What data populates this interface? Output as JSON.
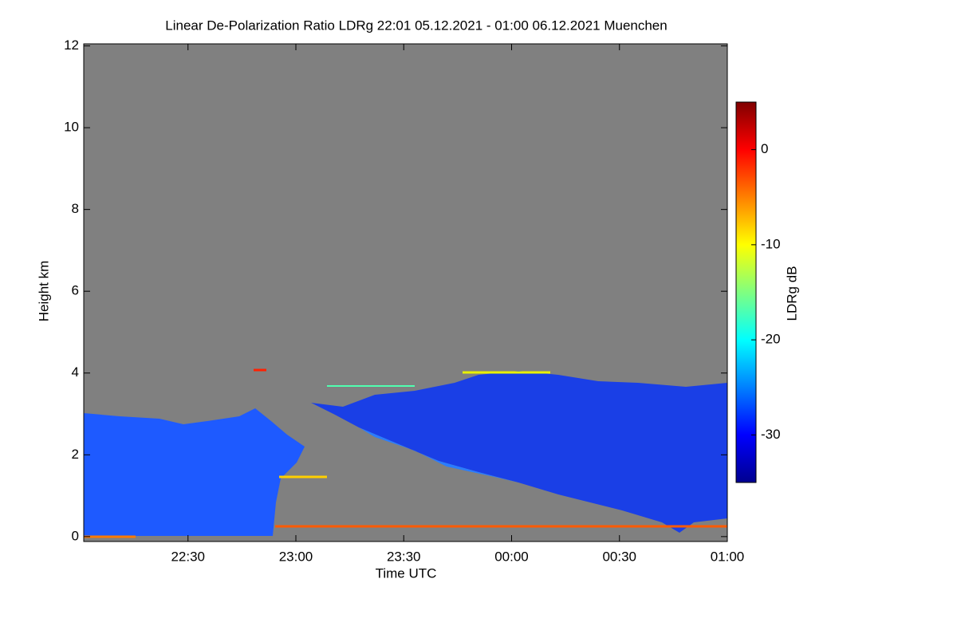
{
  "chart_data": {
    "type": "heatmap",
    "title": "Linear De-Polarization Ratio LDRg   22:01 05.12.2021 - 01:00 06.12.2021 Muenchen",
    "xlabel": "Time UTC",
    "ylabel": "Height km",
    "colorbar_label": "LDRg dB",
    "xlim": [
      1,
      180
    ],
    "xticks": [
      {
        "value": 30,
        "label": "22:30"
      },
      {
        "value": 60,
        "label": "23:00"
      },
      {
        "value": 90,
        "label": "23:30"
      },
      {
        "value": 120,
        "label": "00:00"
      },
      {
        "value": 150,
        "label": "00:30"
      },
      {
        "value": 180,
        "label": "01:00"
      }
    ],
    "ylim": [
      -0.12,
      12.05
    ],
    "yticks": [
      0,
      2,
      4,
      6,
      8,
      10,
      12
    ],
    "clim": [
      -35,
      5
    ],
    "cticks": [
      0,
      -10,
      -20,
      -30
    ],
    "colormap": "jet",
    "background_color": "#808080"
  }
}
